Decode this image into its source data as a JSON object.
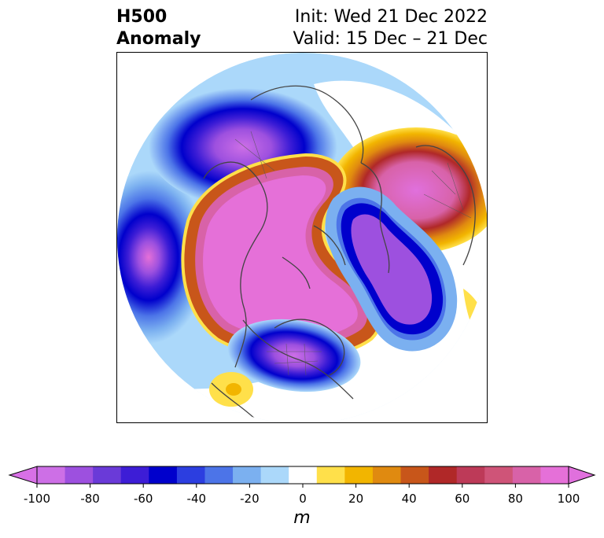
{
  "title": {
    "left_line1": "H500",
    "left_line2": "Anomaly",
    "right_line1": "Init: Wed 21 Dec 2022",
    "right_line2": "Valid: 15 Dec – 21 Dec"
  },
  "colorbar": {
    "unit": "m",
    "range": [
      -100,
      100
    ],
    "ticks": [
      "-100",
      "-80",
      "-60",
      "-40",
      "-20",
      "0",
      "20",
      "40",
      "60",
      "80",
      "100"
    ],
    "colors": [
      "#cd6fe6",
      "#9d50df",
      "#6a3ad8",
      "#3d1dd6",
      "#0000cc",
      "#2c3ee0",
      "#4c74e8",
      "#7bb0f0",
      "#abd8fa",
      "#ffffff",
      "#ffe04a",
      "#f2b500",
      "#e08a10",
      "#c8561a",
      "#b02828",
      "#bd3a58",
      "#cf5478",
      "#d862a8",
      "#e570d8"
    ],
    "extend_low_color": "#d870e6",
    "extend_high_color": "#e070dd"
  },
  "map": {
    "projection": "north-polar-stereographic",
    "field": "500 hPa geopotential height anomaly"
  }
}
